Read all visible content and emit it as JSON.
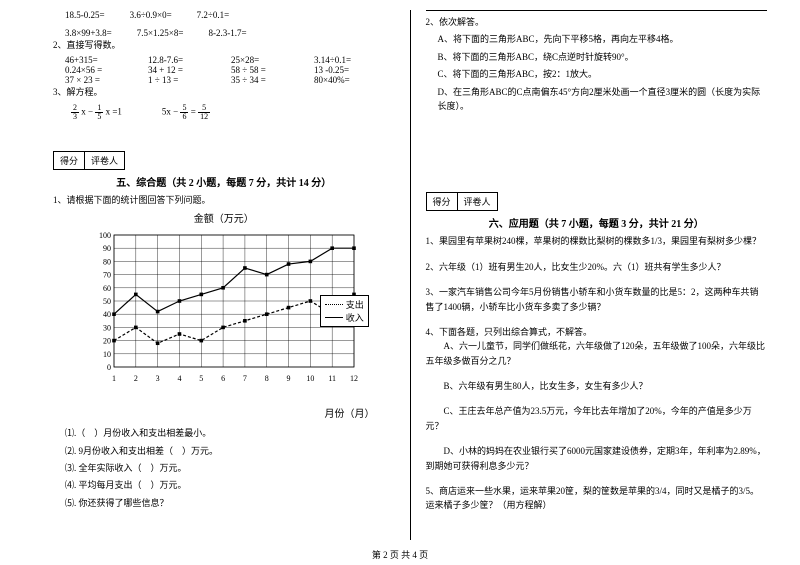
{
  "left": {
    "eq_row1": [
      "18.5-0.25=",
      "3.6÷0.9×0=",
      "7.2÷0.1="
    ],
    "eq_row2": [
      "3.8×99+3.8=",
      "7.5×1.25×8=",
      "8-2.3-1.7="
    ],
    "q2_title": "2、直接写得数。",
    "grid": [
      [
        "46+315=",
        "12.8-7.6=",
        "25×28=",
        "3.14÷0.1="
      ],
      [
        "0.24×56 =",
        "34 + 12 =",
        "58 ÷ 58 =",
        "13 -0.25="
      ],
      [
        "37 × 23 =",
        "1 ÷ 13 =",
        "35 ÷ 34 =",
        "80×40%="
      ]
    ],
    "q3_title": "3、解方程。",
    "eq3a_n1": "2",
    "eq3a_d1": "3",
    "eq3a_mid": "x −",
    "eq3a_n2": "1",
    "eq3a_d2": "5",
    "eq3a_end": "x =1",
    "eq3b_pre": "5x −",
    "eq3b_n1": "5",
    "eq3b_d1": "6",
    "eq3b_eq": "=",
    "eq3b_n2": "5",
    "eq3b_d2": "12",
    "score_l": "得分",
    "score_r": "评卷人",
    "section5": "五、综合题（共 2 小题，每题 7 分，共计 14 分）",
    "q5_1": "1、请根据下面的统计图回答下列问题。",
    "chart_title": "金额（万元）",
    "legend1": "支出",
    "legend2": "收入",
    "xaxis": "月份（月）",
    "yticks": [
      "100",
      "90",
      "80",
      "70",
      "60",
      "50",
      "40",
      "30",
      "20",
      "10",
      "0"
    ],
    "xticks": [
      "1",
      "2",
      "3",
      "4",
      "5",
      "6",
      "7",
      "8",
      "9",
      "10",
      "11",
      "12"
    ],
    "sub": [
      "⑴.（　）月份收入和支出相差最小。",
      "⑵. 9月份收入和支出相差（　）万元。",
      "⑶. 全年实际收入（　）万元。",
      "⑷. 平均每月支出（　）万元。",
      "⑸. 你还获得了哪些信息？"
    ]
  },
  "right": {
    "q2_title": "2、依次解答。",
    "q2_items": [
      "A、将下面的三角形ABC，先向下平移5格，再向左平移4格。",
      "B、将下面的三角形ABC，绕C点逆时针旋转90°。",
      "C、将下面的三角形ABC，按2：1放大。",
      "D、在三角形ABC的C点南偏东45°方向2厘米处画一个直径3厘米的圆（长度为实际长度）。"
    ],
    "score_l": "得分",
    "score_r": "评卷人",
    "section6": "六、应用题（共 7 小题，每题 3 分，共计 21 分）",
    "apps": [
      "1、果园里有苹果树240棵，苹果树的棵数比梨树的棵数多1/3，果园里有梨树多少棵？",
      "2、六年级（1）班有男生20人，比女生少20%。六（1）班共有学生多少人？",
      "3、一家汽车销售公司今年5月份销售小轿车和小货车数量的比是5：2，这两种车共销售了1400辆，小轿车比小货车多卖了多少辆？",
      "4、下面各题，只列出综合算式，不解答。\n　　A、六一儿童节，同学们做纸花，六年级做了120朵，五年级做了100朵，六年级比五年级多做百分之几？",
      "　　B、六年级有男生80人，比女生多，女生有多少人？",
      "　　C、王庄去年总产值为23.5万元，今年比去年增加了20%，今年的产值是多少万元？",
      "　　D、小林的妈妈在农业银行买了6000元国家建设债券，定期3年，年利率为2.89%，到期她可获得利息多少元？",
      "5、商店运来一些水果，运来苹果20筐，梨的筐数是苹果的3/4，同时又是橘子的3/5。运来橘子多少筐？（用方程解）"
    ]
  },
  "footer": "第 2 页 共 4 页",
  "chart": {
    "income": [
      40,
      55,
      42,
      50,
      55,
      60,
      75,
      70,
      78,
      80,
      90,
      90
    ],
    "expense": [
      20,
      30,
      18,
      25,
      20,
      30,
      35,
      40,
      45,
      50,
      40,
      55
    ],
    "grid_color": "#000",
    "bg": "#fff"
  }
}
